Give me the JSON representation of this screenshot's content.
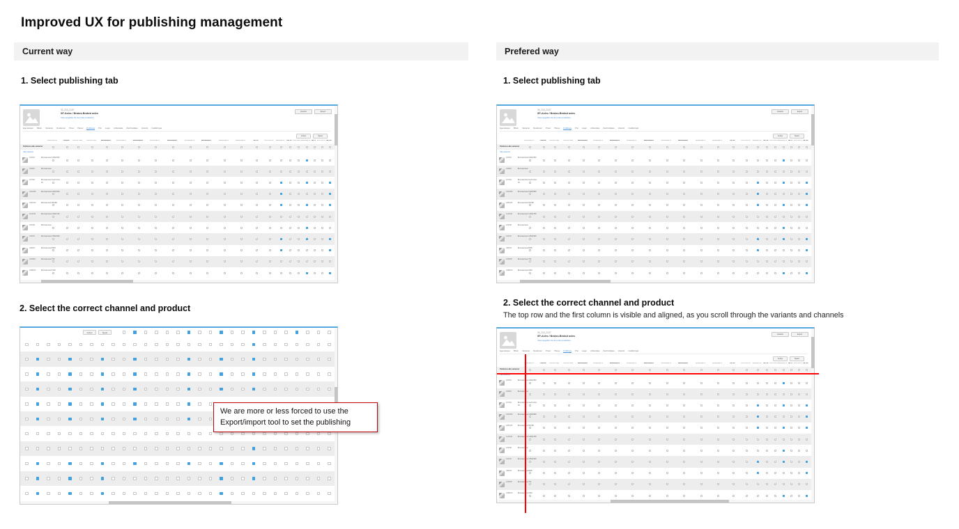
{
  "page": {
    "title": "Improved UX for publishing management"
  },
  "sections": {
    "current": {
      "header": "Current way",
      "step1_title": "1. Select publishing tab",
      "step2_title": "2. Select the correct channel and product"
    },
    "preferred": {
      "header": "Prefered way",
      "step1_title": "1. Select publishing tab",
      "step2_title": "2. Select the correct channel and product",
      "step2_note": "The top row and the first column is visible and aligned, as you scroll through the variants and channels"
    }
  },
  "callout": {
    "text": "We are more or less forced to use the Export/import tool to set the publishing"
  },
  "colors": {
    "accent_blue": "#42a2e0",
    "link_blue": "#4a90d9",
    "callout_red": "#c00000",
    "crosshair_red": "#ff0000",
    "section_bar_bg": "#f2f2f2",
    "stripe_gray": "#ededed"
  },
  "mini_app": {
    "product_id": "30_210_2107",
    "product_name": "SP-Axles / Brakes-Braked axles",
    "details_link": "Visa uppgifter för den här produkten",
    "header_buttons": [
      "Historik",
      "Export"
    ],
    "tabs": [
      "Egenskaper",
      "Bilder",
      "Varianter",
      "Relationer",
      "Priser",
      "Planer",
      "Publicera",
      "Pris",
      "Lager",
      "Artikeldata",
      "Återförsäljare",
      "Historik",
      "Inställningar"
    ],
    "active_tab_index": 6,
    "action_buttons": [
      "Avbryt",
      "Spara"
    ],
    "publish_all_label": "Publicera alla varianter",
    "select_variants_link": "Välj varianter",
    "channels": [
      {
        "label": "GrandTeam Global",
        "bold": false
      },
      {
        "label": "Collector",
        "bold": true
      },
      {
        "label": "Collector Global",
        "bold": false
      },
      {
        "label": "Collector Sweden",
        "bold": false
      },
      {
        "label": "BrandSwipeOn_AU",
        "bold": true
      },
      {
        "label": "BrandSwipeOn Germany",
        "bold": false
      },
      {
        "label": "BrandSwipeOn_CH",
        "bold": true
      },
      {
        "label": "BrandSwipeOn Denmark",
        "bold": false
      },
      {
        "label": "BrandSwipeOn_NO",
        "bold": true
      },
      {
        "label": "BrandSwipeOn Norway",
        "bold": false
      },
      {
        "label": "BrandSwipeOn_SE",
        "bold": true
      },
      {
        "label": "BrandSwipeOn Sweden",
        "bold": false
      },
      {
        "label": "BrandSwipeOn Sweden English",
        "bold": false
      },
      {
        "label": "DB_DE",
        "bold": true
      },
      {
        "label": "B2B Portal DE",
        "bold": false
      },
      {
        "label": "Storeboys DE",
        "bold": false
      },
      {
        "label": "DB_DK",
        "bold": true
      },
      {
        "label": "B2B Portal DK",
        "bold": false
      },
      {
        "label": "Storeboys DK",
        "bold": false
      },
      {
        "label": "DB_FI",
        "bold": true
      },
      {
        "label": "B2B Portal FI",
        "bold": false
      },
      {
        "label": "DB_NO",
        "bold": true
      }
    ],
    "rows": [
      {
        "sku": "103451",
        "name": "Bromsad axel 1300/1500",
        "checked": [
          18
        ]
      },
      {
        "sku": "105851",
        "name": "Bromsad axel",
        "checked": []
      },
      {
        "sku": "107051",
        "name": "Bromsad axel med broms 30",
        "checked": [
          15,
          18,
          21
        ]
      },
      {
        "sku": "1024058",
        "name": "Bromsad axel 1300/1500",
        "checked": [
          15,
          21
        ]
      },
      {
        "sku": "1066443",
        "name": "Bromsad axel 600 BC",
        "checked": [
          15,
          18,
          21
        ]
      },
      {
        "sku": "1122032",
        "name": "Bromsad axel 1400/1700",
        "checked": []
      },
      {
        "sku": "103348",
        "name": "Bromsad axel",
        "checked": [
          18
        ]
      },
      {
        "sku": "104570",
        "name": "Bromsad axel 1350/1500",
        "checked": [
          15,
          18,
          21
        ]
      },
      {
        "sku": "108223",
        "name": "Bromsad axel BPW",
        "checked": [
          15,
          21
        ]
      },
      {
        "sku": "1035567",
        "name": "Bromsad axel 750",
        "checked": []
      },
      {
        "sku": "1098210",
        "name": "Bromsad axel 1500",
        "checked": [
          18,
          21
        ]
      }
    ]
  },
  "zoom_grid": {
    "buttons": [
      "Avbryt",
      "Spara"
    ],
    "cols": 29,
    "top_row_start_col": 9,
    "top_row_checked": [
      10,
      15,
      18,
      21,
      25
    ],
    "rows": [
      {
        "shade": "white",
        "checked": [
          21
        ]
      },
      {
        "shade": "gray",
        "checked": [
          1,
          4,
          7,
          10,
          15,
          18,
          21
        ]
      },
      {
        "shade": "white",
        "checked": [
          1,
          4,
          7,
          10,
          15,
          18,
          21
        ]
      },
      {
        "shade": "gray",
        "checked": [
          1,
          4,
          7,
          10,
          15,
          18,
          21
        ]
      },
      {
        "shade": "white",
        "checked": [
          1,
          4,
          7,
          10,
          15,
          18,
          21
        ]
      },
      {
        "shade": "gray",
        "checked": [
          1,
          4,
          7,
          10,
          15
        ]
      },
      {
        "shade": "white",
        "checked": []
      },
      {
        "shade": "gray",
        "checked": [
          21
        ]
      },
      {
        "shade": "white",
        "checked": [
          1,
          4,
          7,
          10,
          15,
          18,
          21
        ]
      },
      {
        "shade": "gray",
        "checked": [
          1,
          4,
          7,
          18,
          21
        ]
      },
      {
        "shade": "white",
        "checked": [
          1,
          4,
          7,
          18
        ]
      }
    ]
  }
}
